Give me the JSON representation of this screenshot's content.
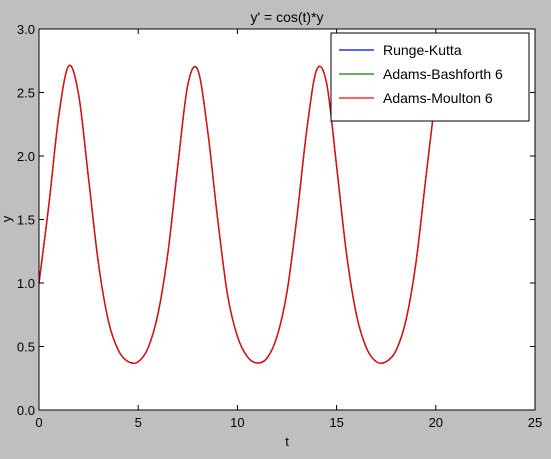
{
  "chart_data": {
    "type": "line",
    "title": "y' =  cos(t)*y",
    "xlabel": "t",
    "ylabel": "y",
    "xlim": [
      0,
      25
    ],
    "ylim": [
      0.0,
      3.0
    ],
    "xticks": [
      0,
      5,
      10,
      15,
      20,
      25
    ],
    "xtick_labels": [
      "0",
      "5",
      "10",
      "15",
      "20",
      "25"
    ],
    "yticks": [
      0.0,
      0.5,
      1.0,
      1.5,
      2.0,
      2.5,
      3.0
    ],
    "ytick_labels": [
      "0.0",
      "0.5",
      "1.0",
      "1.5",
      "2.0",
      "2.5",
      "3.0"
    ],
    "grid": false,
    "legend_position": "top-right",
    "x": [
      0,
      0.5,
      1,
      1.5,
      2,
      2.5,
      3,
      3.5,
      4,
      4.5,
      5,
      5.5,
      6,
      6.5,
      7,
      7.5,
      8,
      8.5,
      9,
      9.5,
      10,
      10.5,
      11,
      11.5,
      12,
      12.5,
      13,
      13.5,
      14,
      14.5,
      15,
      15.5,
      16,
      16.5,
      17,
      17.5,
      18,
      18.5,
      19,
      19.5,
      20
    ],
    "series": [
      {
        "name": "Runge-Kutta",
        "color": "#0000ff",
        "values": [
          1.0,
          1.62,
          2.32,
          2.71,
          2.48,
          1.82,
          1.15,
          0.7,
          0.47,
          0.38,
          0.38,
          0.49,
          0.76,
          1.24,
          1.93,
          2.56,
          2.68,
          2.2,
          1.51,
          0.91,
          0.58,
          0.42,
          0.37,
          0.41,
          0.58,
          0.93,
          1.52,
          2.21,
          2.68,
          2.57,
          1.92,
          1.23,
          0.75,
          0.49,
          0.38,
          0.38,
          0.47,
          0.71,
          1.16,
          1.83,
          2.49
        ]
      },
      {
        "name": "Adams-Bashforth 6",
        "color": "#008000",
        "values": [
          1.0,
          1.62,
          2.32,
          2.71,
          2.48,
          1.82,
          1.15,
          0.7,
          0.47,
          0.38,
          0.38,
          0.49,
          0.76,
          1.24,
          1.93,
          2.56,
          2.68,
          2.2,
          1.51,
          0.91,
          0.58,
          0.42,
          0.37,
          0.41,
          0.58,
          0.93,
          1.52,
          2.21,
          2.68,
          2.57,
          1.92,
          1.23,
          0.75,
          0.49,
          0.38,
          0.38,
          0.47,
          0.71,
          1.16,
          1.83,
          2.49
        ]
      },
      {
        "name": "Adams-Moulton 6",
        "color": "#ff0000",
        "values": [
          1.0,
          1.62,
          2.32,
          2.71,
          2.48,
          1.82,
          1.15,
          0.7,
          0.47,
          0.38,
          0.38,
          0.49,
          0.76,
          1.24,
          1.93,
          2.56,
          2.68,
          2.2,
          1.51,
          0.91,
          0.58,
          0.42,
          0.37,
          0.41,
          0.58,
          0.93,
          1.52,
          2.21,
          2.68,
          2.57,
          1.92,
          1.23,
          0.75,
          0.49,
          0.38,
          0.38,
          0.47,
          0.71,
          1.16,
          1.83,
          2.49
        ]
      }
    ]
  }
}
